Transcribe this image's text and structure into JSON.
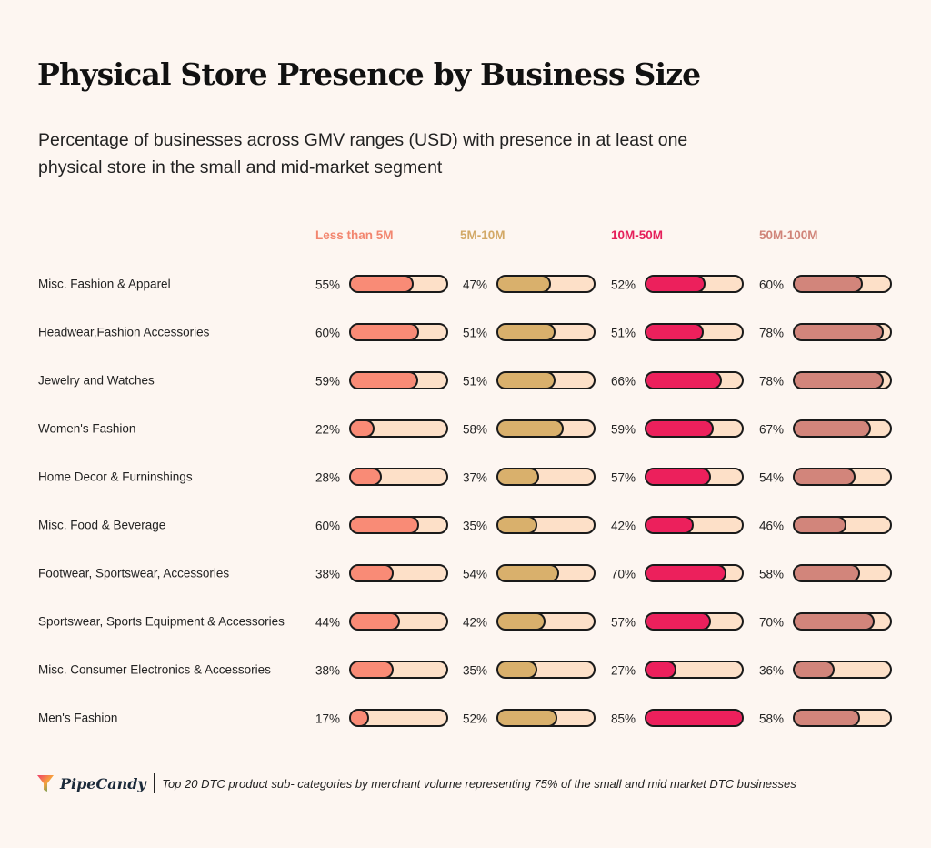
{
  "chart_data": {
    "type": "bar",
    "orientation": "horizontal",
    "title": "Physical Store Presence by Business Size",
    "subtitle": "Percentage of businesses across GMV ranges (USD) with presence in at least one physical store in the small and mid-market segment",
    "xlabel": "",
    "ylabel": "",
    "value_range": [
      0,
      85
    ],
    "value_unit": "%",
    "categories": [
      "Misc. Fashion & Apparel",
      "Headwear,Fashion Accessories",
      "Jewelry and Watches",
      "Women's Fashion",
      "Home Decor & Furninshings",
      "Misc. Food & Beverage",
      "Footwear, Sportswear, Accessories",
      "Sportswear, Sports Equipment & Accessories",
      "Misc. Consumer Electronics & Accessories",
      "Men's Fashion"
    ],
    "series": [
      {
        "name": "Less than 5M",
        "color": "#f98b76",
        "header_color": "#f2866f",
        "values": [
          55,
          60,
          59,
          22,
          28,
          60,
          38,
          44,
          38,
          17
        ]
      },
      {
        "name": "5M-10M",
        "color": "#d9b06c",
        "header_color": "#d2a866",
        "values": [
          47,
          51,
          51,
          58,
          37,
          35,
          54,
          42,
          35,
          52
        ]
      },
      {
        "name": "10M-50M",
        "color": "#ec205c",
        "header_color": "#e51f5a",
        "values": [
          52,
          51,
          66,
          59,
          57,
          42,
          70,
          57,
          27,
          85
        ]
      },
      {
        "name": "50M-100M",
        "color": "#d2857b",
        "header_color": "#d08479",
        "values": [
          60,
          78,
          78,
          67,
          54,
          46,
          58,
          70,
          36,
          58
        ]
      }
    ],
    "track_color": "#fde0c8",
    "grid": false,
    "legend": "column headers"
  },
  "footer": {
    "brand": "PipeCandy",
    "note": "Top 20 DTC product sub- categories by merchant volume representing 75% of the small and mid market DTC businesses"
  }
}
